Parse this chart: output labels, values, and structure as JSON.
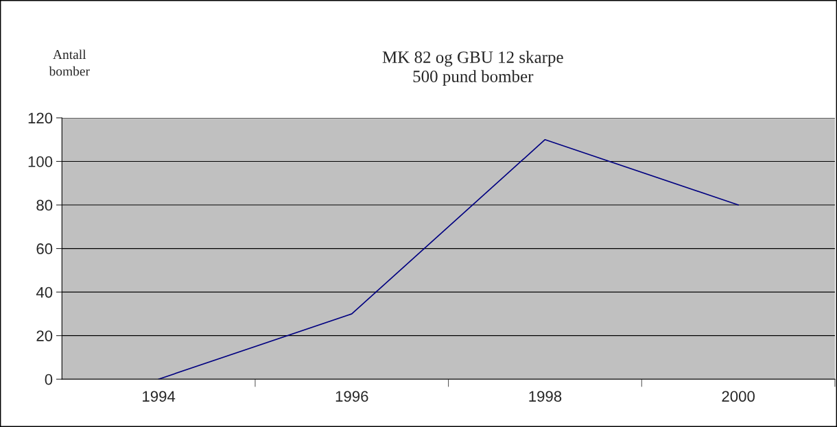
{
  "chart_data": {
    "type": "line",
    "title": "MK 82 og GBU 12 skarpe\n500 pund bomber",
    "ylabel": "Antall\nbomber",
    "categories": [
      "1994",
      "1996",
      "1998",
      "2000"
    ],
    "series": [
      {
        "color": "#000080",
        "values": [
          0,
          30,
          110,
          80
        ]
      }
    ],
    "ylim": [
      0,
      120
    ],
    "yticks": [
      0,
      20,
      40,
      60,
      80,
      100,
      120
    ],
    "grid": "y",
    "marker": "none",
    "line_style": "solid"
  }
}
